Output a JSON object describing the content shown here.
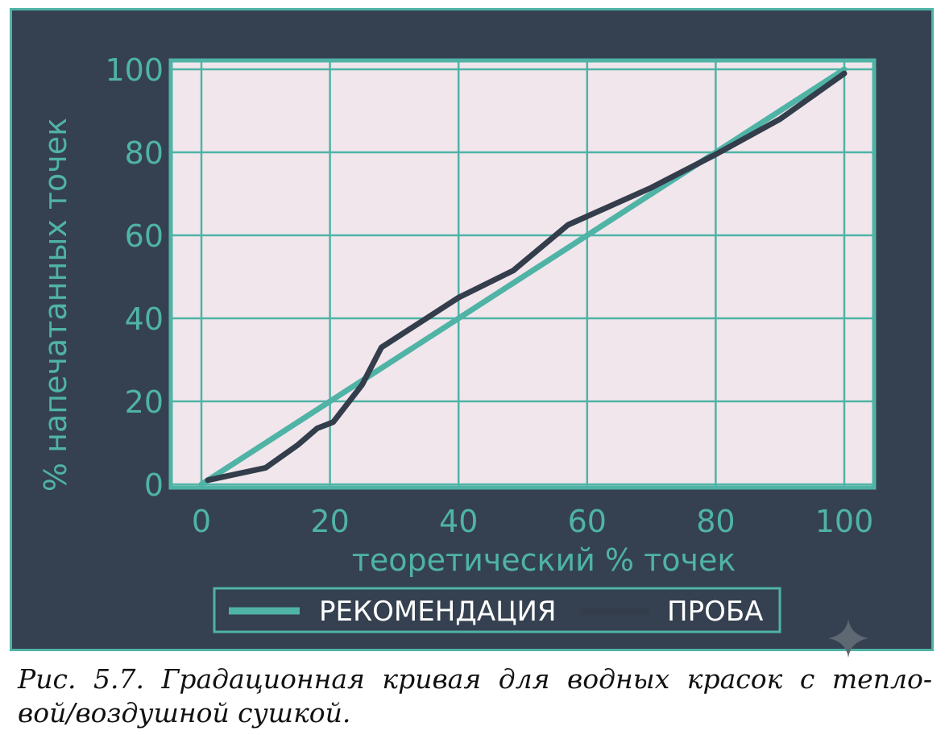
{
  "chart_data": {
    "type": "line",
    "xlabel": "теоретический % точек",
    "ylabel": "% напечатанных точек",
    "xlim": [
      0,
      100
    ],
    "ylim": [
      0,
      100
    ],
    "x_ticks": [
      "0",
      "20",
      "40",
      "60",
      "80",
      "100"
    ],
    "y_ticks": [
      "0",
      "20",
      "40",
      "60",
      "80",
      "100"
    ],
    "grid": true,
    "legend_position": "bottom",
    "series": [
      {
        "name": "РЕКОМЕНДАЦИЯ",
        "color": "#4fb3a6",
        "x": [
          0,
          100
        ],
        "y": [
          0,
          100
        ]
      },
      {
        "name": "ПРОБА",
        "color": "#333d4b",
        "x": [
          1,
          10,
          15,
          18,
          20.5,
          25,
          28,
          33,
          40,
          48.5,
          57,
          70,
          80,
          90,
          100
        ],
        "y": [
          1,
          4,
          9.5,
          13.5,
          15,
          24,
          33,
          38,
          45,
          51.5,
          62.5,
          71.5,
          79.5,
          88,
          99
        ]
      }
    ]
  },
  "caption": "Рис. 5.7. Градационная кривая для водных красок с тепло- вой/воздушной сушкой.",
  "caption_line1": "Рис. 5.7. Градационная кривая для водных красок с тепло-",
  "caption_line2": "вой/воздушной сушкой."
}
